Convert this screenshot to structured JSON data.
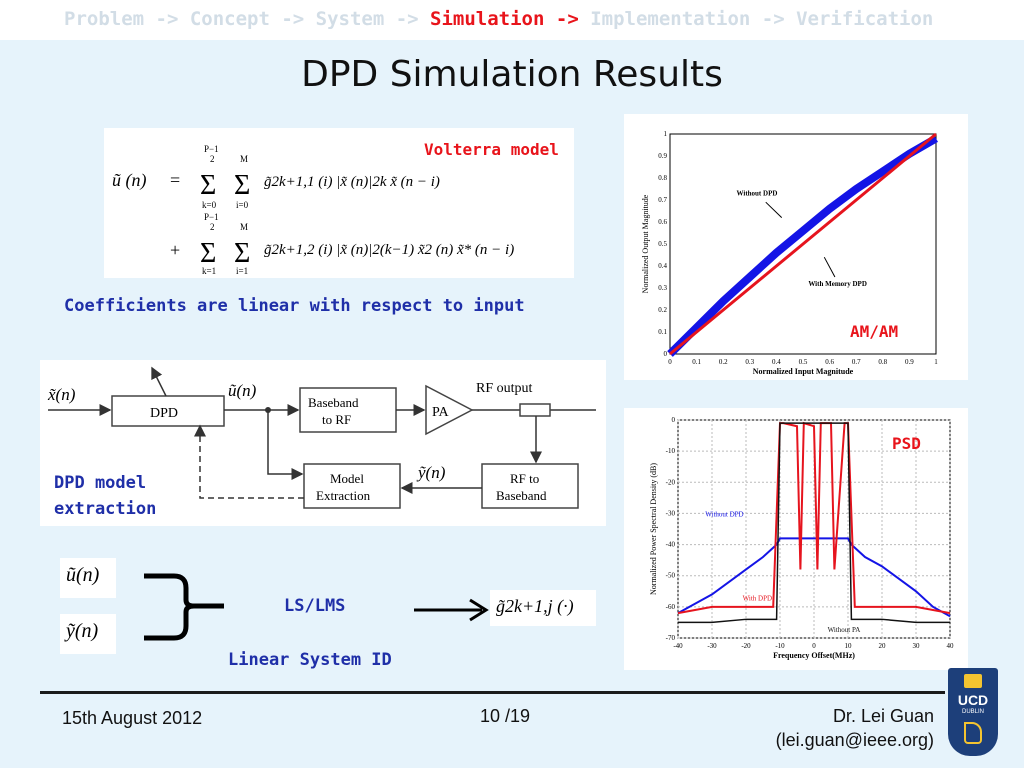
{
  "breadcrumb": {
    "before": "Problem -> Concept -> System -> ",
    "active": "Simulation ->",
    "after": " Implementation -> Verification"
  },
  "title": "DPD Simulation Results",
  "volterra": {
    "label": "Volterra model",
    "lhs": "ũ (n)",
    "eq": "=",
    "plus": "+",
    "sum_outer_top": "P−1",
    "sum_outer_half": "2",
    "sum_outer_bot1": "k=0",
    "sum_outer_bot2": "k=1",
    "sum_inner_top": "M",
    "sum_inner_bot1": "i=0",
    "sum_inner_bot2": "i=1",
    "term1": "g̃2k+1,1 (i) |x̃ (n)|2k x̃ (n − i)",
    "term2": "g̃2k+1,2 (i) |x̃ (n)|2(k−1) x̃2 (n) x̃* (n − i)"
  },
  "coeff_note": "Coefficients are linear with respect to input",
  "block": {
    "x_label": "x̃(n)",
    "u_label": "ũ(n)",
    "y_label": "ỹ(n)",
    "dpd": "DPD",
    "baseband_rf": [
      "Baseband",
      "to RF"
    ],
    "pa": "PA",
    "rf_output": "RF output",
    "model_extraction": [
      "Model",
      "Extraction"
    ],
    "rf_baseband": [
      "RF to",
      "Baseband"
    ],
    "caption": [
      "DPD model",
      "extraction"
    ]
  },
  "sysid": {
    "u": "ũ(n)",
    "y": "ỹ(n)",
    "method": "LS/LMS",
    "subtitle": "Linear System ID",
    "result": "g̃2k+1,j (·)"
  },
  "amam": {
    "label": "AM/AM",
    "annotation_without": "Without DPD",
    "annotation_with": "With Memory DPD",
    "chart_data": {
      "type": "line",
      "xlabel": "Normalized Input Magnitude",
      "ylabel": "Normalized Output Magnitude",
      "xlim": [
        0,
        1
      ],
      "ylim": [
        0,
        1
      ],
      "xticks": [
        "0",
        "0.1",
        "0.2",
        "0.3",
        "0.4",
        "0.5",
        "0.6",
        "0.7",
        "0.8",
        "0.9",
        "1"
      ],
      "yticks": [
        "0",
        "0.1",
        "0.2",
        "0.3",
        "0.4",
        "0.5",
        "0.6",
        "0.7",
        "0.8",
        "0.9",
        "1"
      ],
      "series": [
        {
          "name": "Without DPD",
          "color": "#1414e6",
          "x": [
            0,
            0.1,
            0.2,
            0.3,
            0.4,
            0.5,
            0.6,
            0.7,
            0.8,
            0.9,
            1.0
          ],
          "y": [
            0,
            0.12,
            0.24,
            0.35,
            0.46,
            0.56,
            0.66,
            0.75,
            0.83,
            0.91,
            0.98
          ]
        },
        {
          "name": "With Memory DPD",
          "color": "#e6141e",
          "x": [
            0,
            0.1,
            0.2,
            0.3,
            0.4,
            0.5,
            0.6,
            0.7,
            0.8,
            0.9,
            1.0
          ],
          "y": [
            0,
            0.1,
            0.2,
            0.3,
            0.4,
            0.5,
            0.6,
            0.7,
            0.8,
            0.9,
            1.0
          ]
        }
      ]
    }
  },
  "psd": {
    "label": "PSD",
    "annotation_without_dpd": "Without DPD",
    "annotation_with_dpd": "With DPD",
    "annotation_without_pa": "Without PA",
    "chart_data": {
      "type": "line",
      "xlabel": "Frequency Offset(MHz)",
      "ylabel": "Normalized Power Spectral Density (dB)",
      "xlim": [
        -40,
        40
      ],
      "ylim": [
        -70,
        0
      ],
      "xticks": [
        "-40",
        "-30",
        "-20",
        "-10",
        "0",
        "10",
        "20",
        "30",
        "40"
      ],
      "yticks": [
        "0",
        "-10",
        "-20",
        "-30",
        "-40",
        "-50",
        "-60",
        "-70"
      ],
      "series": [
        {
          "name": "Without DPD",
          "color": "#1414e6",
          "x": [
            -40,
            -35,
            -30,
            -25,
            -20,
            -15,
            -11,
            -10,
            10,
            11,
            15,
            20,
            25,
            30,
            35,
            40
          ],
          "y": [
            -62,
            -59,
            -56,
            -52,
            -48,
            -44,
            -40,
            -38,
            -38,
            -40,
            -44,
            -47,
            -51,
            -55,
            -60,
            -63
          ]
        },
        {
          "name": "With DPD",
          "color": "#e6141e",
          "x": [
            -40,
            -30,
            -20,
            -12,
            -10,
            -9,
            -5,
            -4,
            -3,
            0,
            1,
            2,
            5,
            6,
            9,
            10,
            12,
            20,
            30,
            40
          ],
          "y": [
            -62,
            -60,
            -60,
            -60,
            -1,
            -1,
            -2,
            -48,
            -1,
            -2,
            -48,
            -1,
            -1,
            -48,
            -1,
            -1,
            -60,
            -60,
            -60,
            -62
          ]
        },
        {
          "name": "Without PA",
          "color": "#111111",
          "x": [
            -40,
            -30,
            -20,
            -11,
            -10,
            10,
            11,
            20,
            30,
            40
          ],
          "y": [
            -65,
            -65,
            -64,
            -64,
            -1,
            -1,
            -64,
            -64,
            -65,
            -65
          ]
        }
      ]
    }
  },
  "footer": {
    "date": "15th August 2012",
    "page": "10 /19",
    "author": "Dr. Lei Guan",
    "email": "(lei.guan@ieee.org)",
    "logo_text": [
      "UCD",
      "DUBLIN"
    ]
  },
  "colors": {
    "accent_red": "#e8141b",
    "accent_blue": "#1f2fa8",
    "bg": "#e6f3fb"
  }
}
